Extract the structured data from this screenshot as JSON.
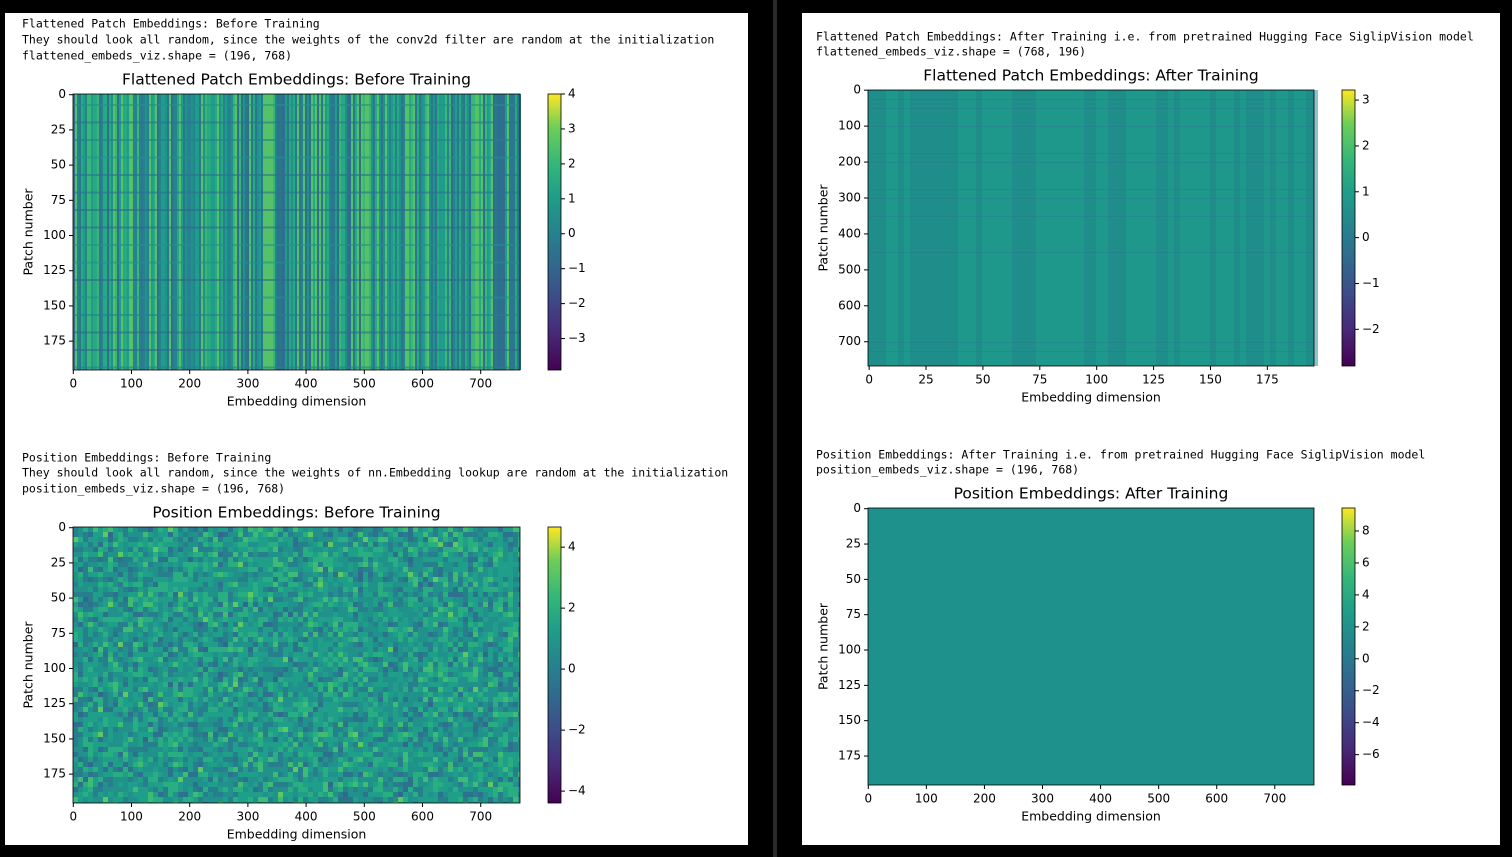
{
  "cells": [
    {
      "output_lines": [
        "Flattened Patch Embeddings: Before Training",
        "They should look all random, since the weights of the conv2d filter are random at the initialization",
        "flattened_embeds_viz.shape = (196, 768)"
      ],
      "chart_data": {
        "type": "heatmap",
        "title": "Flattened Patch Embeddings: Before Training",
        "x_label": "Embedding dimension",
        "y_label": "Patch number",
        "colormap": "viridis",
        "xlim": [
          -0.5,
          767.5
        ],
        "xticks": [
          0,
          100,
          200,
          300,
          400,
          500,
          600,
          700
        ],
        "ylim": [
          195.5,
          -0.5
        ],
        "yticks": [
          0,
          25,
          50,
          75,
          100,
          125,
          150,
          175
        ],
        "clim": [
          -3.9,
          4.0
        ],
        "cticks": [
          {
            "value": -3,
            "label": "−3"
          },
          {
            "value": -2,
            "label": "−2"
          },
          {
            "value": -1,
            "label": "−1"
          },
          0,
          1,
          2,
          3,
          4
        ]
      }
    },
    {
      "output_lines": [
        "Flattened Patch Embeddings: After Training i.e. from pretrained Hugging Face SiglipVision model",
        "flattened_embeds_viz.shape = (768, 196)"
      ],
      "chart_data": {
        "type": "heatmap",
        "title": "Flattened Patch Embeddings: After Training",
        "x_label": "Embedding dimension",
        "y_label": "Patch number",
        "colormap": "viridis",
        "xlim": [
          -0.5,
          195.5
        ],
        "xticks": [
          0,
          25,
          50,
          75,
          100,
          125,
          150,
          175
        ],
        "ylim": [
          767.5,
          -0.5
        ],
        "yticks": [
          0,
          100,
          200,
          300,
          400,
          500,
          600,
          700
        ],
        "clim": [
          -2.8,
          3.22
        ],
        "cticks": [
          {
            "value": -2,
            "label": "−2"
          },
          {
            "value": -1,
            "label": "−1"
          },
          0,
          1,
          2,
          3
        ]
      }
    },
    {
      "output_lines": [
        "Position Embeddings: Before Training",
        "They should look all random, since the weights of nn.Embedding lookup are random at the initialization",
        "position_embeds_viz.shape = (196, 768)"
      ],
      "chart_data": {
        "type": "heatmap",
        "title": "Position Embeddings: Before Training",
        "x_label": "Embedding dimension",
        "y_label": "Patch number",
        "colormap": "viridis",
        "xlim": [
          -0.5,
          767.5
        ],
        "xticks": [
          0,
          100,
          200,
          300,
          400,
          500,
          600,
          700
        ],
        "ylim": [
          195.5,
          -0.5
        ],
        "yticks": [
          0,
          25,
          50,
          75,
          100,
          125,
          150,
          175
        ],
        "clim": [
          -4.39,
          4.66
        ],
        "cticks": [
          {
            "value": -4,
            "label": "−4"
          },
          {
            "value": -2,
            "label": "−2"
          },
          0,
          2,
          4
        ]
      }
    },
    {
      "output_lines": [
        "Position Embeddings: After Training i.e. from pretrained Hugging Face SiglipVision model",
        "position_embeds_viz.shape = (196, 768)"
      ],
      "chart_data": {
        "type": "heatmap",
        "title": "Position Embeddings: After Training",
        "x_label": "Embedding dimension",
        "y_label": "Patch number",
        "colormap": "viridis",
        "xlim": [
          -0.5,
          767.5
        ],
        "xticks": [
          0,
          100,
          200,
          300,
          400,
          500,
          600,
          700
        ],
        "ylim": [
          195.5,
          -0.5
        ],
        "yticks": [
          0,
          25,
          50,
          75,
          100,
          125,
          150,
          175
        ],
        "clim": [
          -7.9,
          9.44
        ],
        "cticks": [
          {
            "value": -6,
            "label": "−6"
          },
          {
            "value": -4,
            "label": "−4"
          },
          {
            "value": -2,
            "label": "−2"
          },
          0,
          2,
          4,
          6,
          8
        ]
      }
    }
  ]
}
